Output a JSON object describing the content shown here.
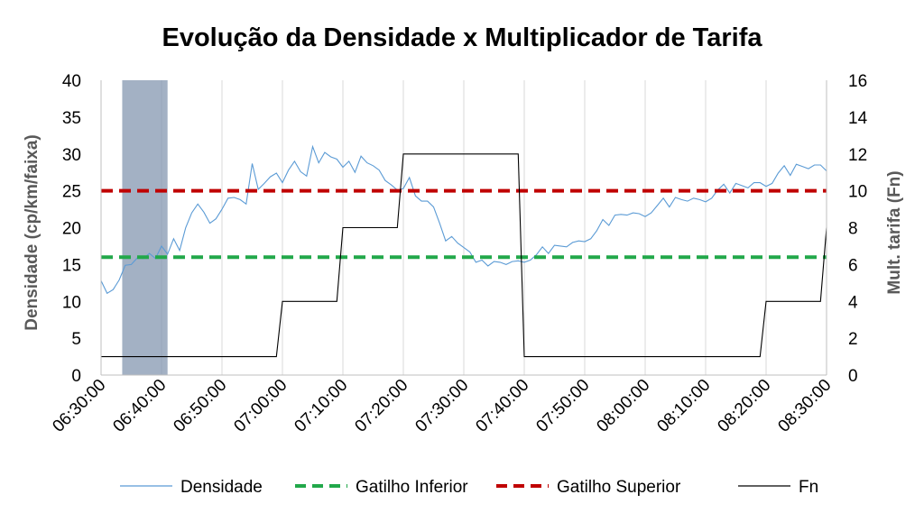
{
  "chart_data": {
    "type": "line",
    "title": "Evolução da Densidade x Multiplicador de Tarifa",
    "ylabel_left": "Densidade (cp/km/faixa)",
    "ylabel_right": "Mult. tarifa (Fn)",
    "ylim_left": [
      0,
      40
    ],
    "ylim_right": [
      0,
      16
    ],
    "yticks_left": [
      0,
      5,
      10,
      15,
      20,
      25,
      30,
      35,
      40
    ],
    "yticks_right": [
      0,
      2,
      4,
      6,
      8,
      10,
      12,
      14,
      16
    ],
    "x_tick_labels": [
      "06:30:00",
      "06:40:00",
      "06:50:00",
      "07:00:00",
      "07:10:00",
      "07:20:00",
      "07:30:00",
      "07:40:00",
      "07:50:00",
      "08:00:00",
      "08:10:00",
      "08:20:00",
      "08:30:00"
    ],
    "x_range_minutes": [
      390,
      510
    ],
    "grid": "vertical",
    "legend_position": "bottom",
    "shaded_interval": {
      "start": "06:33:30",
      "end": "06:41:00",
      "color": "#8497b0"
    },
    "series": [
      {
        "name": "Densidade",
        "axis": "left",
        "color": "#5b9bd5",
        "style": "solid",
        "x": [
          "06:30:00",
          "06:31:00",
          "06:32:00",
          "06:33:00",
          "06:34:00",
          "06:35:00",
          "06:36:00",
          "06:37:00",
          "06:38:00",
          "06:39:00",
          "06:40:00",
          "06:41:00",
          "06:42:00",
          "06:43:00",
          "06:44:00",
          "06:45:00",
          "06:46:00",
          "06:47:00",
          "06:48:00",
          "06:49:00",
          "06:50:00",
          "06:51:00",
          "06:52:00",
          "06:53:00",
          "06:54:00",
          "06:55:00",
          "06:56:00",
          "06:57:00",
          "06:58:00",
          "06:59:00",
          "07:00:00",
          "07:01:00",
          "07:02:00",
          "07:03:00",
          "07:04:00",
          "07:05:00",
          "07:06:00",
          "07:07:00",
          "07:08:00",
          "07:09:00",
          "07:10:00",
          "07:11:00",
          "07:12:00",
          "07:13:00",
          "07:14:00",
          "07:15:00",
          "07:16:00",
          "07:17:00",
          "07:18:00",
          "07:19:00",
          "07:20:00",
          "07:21:00",
          "07:22:00",
          "07:23:00",
          "07:24:00",
          "07:25:00",
          "07:26:00",
          "07:27:00",
          "07:28:00",
          "07:29:00",
          "07:30:00",
          "07:31:00",
          "07:32:00",
          "07:33:00",
          "07:34:00",
          "07:35:00",
          "07:36:00",
          "07:37:00",
          "07:38:00",
          "07:39:00",
          "07:40:00",
          "07:41:00",
          "07:42:00",
          "07:43:00",
          "07:44:00",
          "07:45:00",
          "07:46:00",
          "07:47:00",
          "07:48:00",
          "07:49:00",
          "07:50:00",
          "07:51:00",
          "07:52:00",
          "07:53:00",
          "07:54:00",
          "07:55:00",
          "07:56:00",
          "07:57:00",
          "07:58:00",
          "07:59:00",
          "08:00:00",
          "08:01:00",
          "08:02:00",
          "08:03:00",
          "08:04:00",
          "08:05:00",
          "08:06:00",
          "08:07:00",
          "08:08:00",
          "08:09:00",
          "08:10:00",
          "08:11:00",
          "08:12:00",
          "08:13:00",
          "08:14:00",
          "08:15:00",
          "08:16:00",
          "08:17:00",
          "08:18:00",
          "08:19:00",
          "08:20:00",
          "08:21:00",
          "08:22:00",
          "08:23:00",
          "08:24:00",
          "08:25:00",
          "08:26:00",
          "08:27:00",
          "08:28:00",
          "08:29:00",
          "08:30:00"
        ],
        "values": [
          12.8,
          11.1,
          11.6,
          12.9,
          14.9,
          15.0,
          15.9,
          15.8,
          16.5,
          15.8,
          17.5,
          16.4,
          18.5,
          16.9,
          20.0,
          22.0,
          23.2,
          22.1,
          20.6,
          21.2,
          22.5,
          24.0,
          24.1,
          23.8,
          23.2,
          28.7,
          25.2,
          26.0,
          26.9,
          27.4,
          26.1,
          27.8,
          29.0,
          27.6,
          27.0,
          31.0,
          28.8,
          30.2,
          29.6,
          29.3,
          28.2,
          29.0,
          27.5,
          29.7,
          28.8,
          28.4,
          27.8,
          26.4,
          25.8,
          25.1,
          25.3,
          26.8,
          24.3,
          23.6,
          23.6,
          22.8,
          20.6,
          18.2,
          18.8,
          17.9,
          17.3,
          16.7,
          15.3,
          15.6,
          14.8,
          15.4,
          15.3,
          15.0,
          15.4,
          15.5,
          15.3,
          15.6,
          16.3,
          17.4,
          16.5,
          17.6,
          17.5,
          17.4,
          18.0,
          18.2,
          18.1,
          18.5,
          19.6,
          21.1,
          20.3,
          21.7,
          21.8,
          21.7,
          22.0,
          21.9,
          21.5,
          22.0,
          23.0,
          24.0,
          22.8,
          24.1,
          23.8,
          23.6,
          24.0,
          23.8,
          23.5,
          24.0,
          25.1,
          25.9,
          24.7,
          26.0,
          25.7,
          25.4,
          26.1,
          26.1,
          25.6,
          26.0,
          27.4,
          28.4,
          27.1,
          28.6,
          28.3,
          28.0,
          28.5,
          28.5,
          27.7
        ]
      },
      {
        "name": "Gatilho Inferior",
        "axis": "left",
        "color": "#22a84a",
        "style": "dashed",
        "x": [
          "06:30:00",
          "08:30:00"
        ],
        "values": [
          16,
          16
        ]
      },
      {
        "name": "Gatilho Superior",
        "axis": "left",
        "color": "#c00000",
        "style": "dashed",
        "x": [
          "06:30:00",
          "08:30:00"
        ],
        "values": [
          25,
          25
        ]
      },
      {
        "name": "Fn",
        "axis": "right",
        "color": "#000000",
        "style": "solid",
        "x": [
          "06:30:00",
          "06:59:00",
          "07:00:00",
          "07:09:00",
          "07:10:00",
          "07:19:00",
          "07:20:00",
          "07:39:00",
          "07:40:00",
          "08:19:00",
          "08:20:00",
          "08:29:00",
          "08:30:00"
        ],
        "values": [
          1,
          1,
          4,
          4,
          8,
          8,
          12,
          12,
          1,
          1,
          4,
          4,
          8
        ]
      }
    ]
  }
}
